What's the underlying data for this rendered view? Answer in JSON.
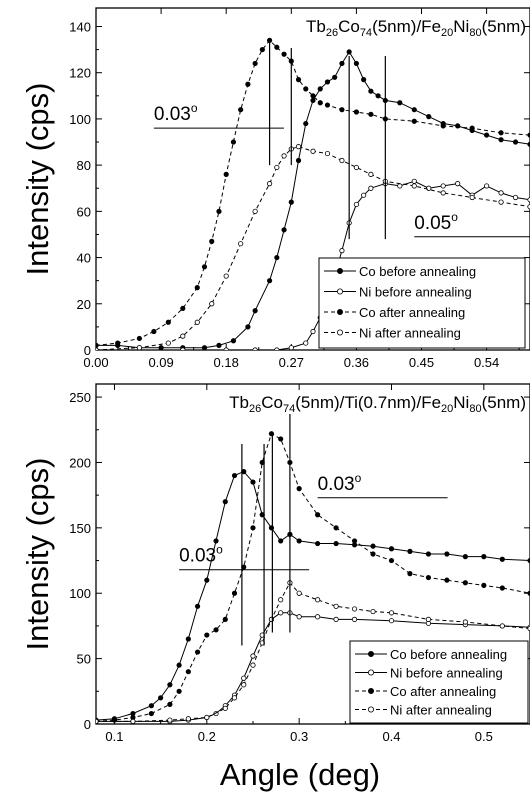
{
  "chart_data": [
    {
      "type": "line",
      "title_parts": [
        "Tb",
        "26",
        "Co",
        "74",
        "(5nm)/Fe",
        "20",
        "Ni",
        "80",
        "(5nm)"
      ],
      "xlabel": "",
      "ylabel": "Intensity (cps)",
      "xlim": [
        0,
        0.6
      ],
      "ylim": [
        0,
        148
      ],
      "xticks": [
        "0.00",
        "0.09",
        "0.18",
        "0.27",
        "0.36",
        "0.45",
        "0.54"
      ],
      "yticks": [
        "0",
        "20",
        "40",
        "60",
        "80",
        "100",
        "120",
        "140"
      ],
      "annotations": [
        {
          "text": "0.03",
          "unit": "o",
          "x": 0.08,
          "y": 96
        },
        {
          "text": "0.05",
          "unit": "o",
          "x": 0.44,
          "y": 49
        }
      ],
      "markers_x": [
        0.24,
        0.27,
        0.35,
        0.4
      ],
      "legend_position": "bottom-right",
      "series": [
        {
          "name": "Co before annealing",
          "line": "solid",
          "marker": "filled",
          "x": [
            0,
            0.03,
            0.06,
            0.09,
            0.12,
            0.15,
            0.17,
            0.19,
            0.21,
            0.22,
            0.24,
            0.25,
            0.26,
            0.27,
            0.28,
            0.29,
            0.3,
            0.31,
            0.32,
            0.33,
            0.34,
            0.35,
            0.36,
            0.37,
            0.38,
            0.39,
            0.4,
            0.42,
            0.44,
            0.46,
            0.48,
            0.5,
            0.52,
            0.54,
            0.56,
            0.58,
            0.6
          ],
          "y": [
            2,
            2,
            1,
            1,
            1,
            1,
            2,
            4,
            10,
            17,
            30,
            40,
            52,
            64,
            82,
            98,
            108,
            113,
            116,
            118,
            124,
            129,
            124,
            117,
            112,
            110,
            108,
            107,
            104,
            101,
            98,
            97,
            95,
            93,
            91,
            90,
            89
          ]
        },
        {
          "name": "Ni before annealing",
          "line": "solid",
          "marker": "open",
          "x": [
            0,
            0.06,
            0.12,
            0.18,
            0.22,
            0.25,
            0.27,
            0.29,
            0.3,
            0.31,
            0.32,
            0.33,
            0.34,
            0.35,
            0.36,
            0.37,
            0.38,
            0.4,
            0.42,
            0.44,
            0.46,
            0.48,
            0.5,
            0.52,
            0.54,
            0.56,
            0.58,
            0.6
          ],
          "y": [
            0,
            0,
            0,
            0,
            0,
            0,
            1,
            3,
            8,
            14,
            22,
            32,
            43,
            55,
            63,
            67,
            70,
            72,
            71,
            73,
            70,
            71,
            72,
            67,
            71,
            68,
            66,
            65
          ]
        },
        {
          "name": "Co after annealing",
          "line": "dashed",
          "marker": "filled",
          "x": [
            0,
            0.03,
            0.06,
            0.08,
            0.1,
            0.12,
            0.14,
            0.15,
            0.16,
            0.17,
            0.18,
            0.19,
            0.2,
            0.21,
            0.22,
            0.23,
            0.24,
            0.25,
            0.26,
            0.27,
            0.28,
            0.29,
            0.3,
            0.31,
            0.32,
            0.34,
            0.36,
            0.38,
            0.4,
            0.44,
            0.48,
            0.52,
            0.56,
            0.6
          ],
          "y": [
            2,
            3,
            5,
            8,
            12,
            18,
            27,
            36,
            47,
            60,
            76,
            90,
            104,
            115,
            124,
            130,
            134,
            131,
            128,
            125,
            117,
            113,
            110,
            107,
            106,
            104,
            103,
            102,
            100,
            99,
            97,
            96,
            94,
            93
          ]
        },
        {
          "name": "Ni after annealing",
          "line": "dashed",
          "marker": "open",
          "x": [
            0,
            0.06,
            0.1,
            0.12,
            0.14,
            0.16,
            0.18,
            0.2,
            0.22,
            0.24,
            0.25,
            0.26,
            0.27,
            0.28,
            0.3,
            0.32,
            0.34,
            0.36,
            0.38,
            0.4,
            0.44,
            0.48,
            0.52,
            0.56,
            0.6
          ],
          "y": [
            0,
            1,
            3,
            6,
            12,
            20,
            32,
            46,
            60,
            72,
            79,
            84,
            87,
            88,
            86,
            85,
            82,
            79,
            76,
            73,
            71,
            68,
            66,
            64,
            62
          ]
        }
      ]
    },
    {
      "type": "line",
      "title_parts": [
        "Tb",
        "26",
        "Co",
        "74",
        "(5nm)/Ti(0.7nm)/Fe",
        "20",
        "Ni",
        "80",
        "(5nm)"
      ],
      "xlabel": "Angle (deg)",
      "ylabel": "Intensity (cps)",
      "xlim": [
        0.08,
        0.55
      ],
      "ylim": [
        0,
        260
      ],
      "xticks": [
        "0.1",
        "0.2",
        "0.3",
        "0.4",
        "0.5"
      ],
      "yticks": [
        "0",
        "50",
        "100",
        "150",
        "200",
        "250"
      ],
      "annotations": [
        {
          "text": "0.03",
          "unit": "o",
          "x": 0.17,
          "y": 118
        },
        {
          "text": "0.03",
          "unit": "o",
          "x": 0.32,
          "y": 173
        }
      ],
      "markers_x": [
        0.238,
        0.262,
        0.271,
        0.29
      ],
      "legend_position": "bottom-right",
      "series": [
        {
          "name": "Co before annealing",
          "line": "solid",
          "marker": "filled",
          "x": [
            0.08,
            0.1,
            0.12,
            0.14,
            0.15,
            0.16,
            0.17,
            0.18,
            0.19,
            0.2,
            0.21,
            0.22,
            0.23,
            0.24,
            0.25,
            0.26,
            0.27,
            0.28,
            0.29,
            0.3,
            0.32,
            0.34,
            0.36,
            0.38,
            0.4,
            0.42,
            0.44,
            0.46,
            0.48,
            0.5,
            0.52,
            0.55
          ],
          "y": [
            3,
            4,
            8,
            14,
            20,
            30,
            45,
            65,
            90,
            110,
            140,
            170,
            190,
            193,
            185,
            160,
            150,
            140,
            145,
            140,
            138,
            138,
            137,
            136,
            134,
            132,
            130,
            130,
            128,
            128,
            126,
            125
          ]
        },
        {
          "name": "Ni before annealing",
          "line": "solid",
          "marker": "open",
          "x": [
            0.08,
            0.12,
            0.16,
            0.18,
            0.2,
            0.21,
            0.22,
            0.23,
            0.24,
            0.25,
            0.26,
            0.27,
            0.28,
            0.29,
            0.3,
            0.32,
            0.34,
            0.36,
            0.4,
            0.44,
            0.48,
            0.52,
            0.55
          ],
          "y": [
            2,
            2,
            2,
            3,
            5,
            8,
            14,
            22,
            35,
            52,
            68,
            80,
            85,
            85,
            82,
            82,
            80,
            80,
            79,
            77,
            76,
            75,
            74
          ]
        },
        {
          "name": "Co after annealing",
          "line": "dashed",
          "marker": "filled",
          "x": [
            0.08,
            0.1,
            0.12,
            0.14,
            0.16,
            0.17,
            0.18,
            0.19,
            0.2,
            0.21,
            0.22,
            0.23,
            0.24,
            0.25,
            0.26,
            0.27,
            0.28,
            0.29,
            0.3,
            0.32,
            0.34,
            0.36,
            0.38,
            0.4,
            0.42,
            0.44,
            0.46,
            0.48,
            0.5,
            0.52,
            0.55
          ],
          "y": [
            2,
            3,
            5,
            8,
            15,
            25,
            40,
            55,
            68,
            72,
            80,
            100,
            120,
            150,
            200,
            222,
            218,
            200,
            180,
            160,
            150,
            140,
            130,
            125,
            115,
            112,
            110,
            108,
            106,
            104,
            100
          ]
        },
        {
          "name": "Ni after annealing",
          "line": "dashed",
          "marker": "open",
          "x": [
            0.08,
            0.12,
            0.16,
            0.18,
            0.2,
            0.22,
            0.23,
            0.24,
            0.25,
            0.26,
            0.27,
            0.28,
            0.29,
            0.3,
            0.32,
            0.34,
            0.36,
            0.38,
            0.4,
            0.44,
            0.48,
            0.52,
            0.55
          ],
          "y": [
            2,
            2,
            3,
            4,
            5,
            12,
            20,
            30,
            45,
            62,
            80,
            95,
            108,
            100,
            95,
            90,
            88,
            86,
            85,
            80,
            78,
            75,
            73
          ]
        }
      ]
    }
  ]
}
